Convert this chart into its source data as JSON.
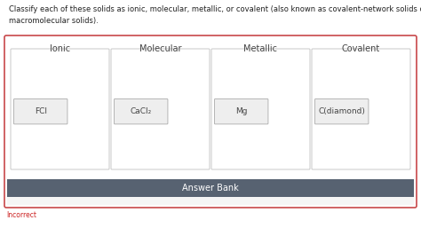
{
  "title_line1": "Classify each of these solids as ionic, molecular, metallic, or covalent (also known as covalent-network solids or",
  "title_line2": "macromolecular solids).",
  "columns": [
    "Ionic",
    "Molecular",
    "Metallic",
    "Covalent"
  ],
  "items": [
    "FCl",
    "CaCl₂",
    "Mg",
    "C(diamond)"
  ],
  "answer_bank_label": "Answer Bank",
  "incorrect_label": "Incorrect",
  "outer_border_color": "#c8484a",
  "answer_bank_bg": "#576271",
  "answer_bank_fg": "#ffffff",
  "answer_section_bg": "#f5f5f5",
  "col_box_edge": "#c8c8c8",
  "col_box_face": "#ffffff",
  "pill_edge": "#aaaaaa",
  "pill_face": "#eeeeee",
  "item_text_color": "#444444",
  "col_header_color": "#444444",
  "incorrect_color": "#cc2222",
  "bg_color": "#ffffff",
  "title_fontsize": 6.0,
  "col_header_fontsize": 7.0,
  "item_fontsize": 6.5,
  "answer_bank_fontsize": 7.0,
  "incorrect_fontsize": 5.5
}
